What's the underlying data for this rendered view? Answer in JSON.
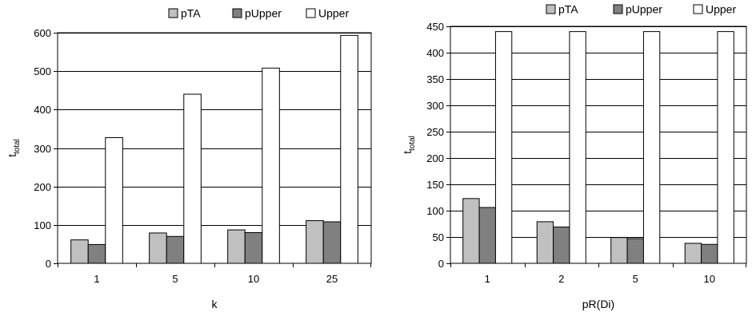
{
  "chart_data": [
    {
      "type": "bar",
      "xlabel": "k",
      "ylabel": "t",
      "ylabel_sub": "total",
      "categories": [
        "1",
        "5",
        "10",
        "25"
      ],
      "series": [
        {
          "name": "pTA",
          "values": [
            61,
            79,
            87,
            111
          ],
          "color": "#c0c0c0"
        },
        {
          "name": "pUpper",
          "values": [
            49,
            70,
            80,
            108
          ],
          "color": "#808080"
        },
        {
          "name": "Upper",
          "values": [
            327,
            440,
            508,
            593
          ],
          "color": "#ffffff"
        }
      ],
      "ylim": [
        0,
        600
      ],
      "yticks": [
        0,
        100,
        200,
        300,
        400,
        500,
        600
      ],
      "grid": true,
      "legend": "top"
    },
    {
      "type": "bar",
      "xlabel": "pR(Di)",
      "ylabel": "t",
      "ylabel_sub": "total",
      "categories": [
        "1",
        "2",
        "5",
        "10"
      ],
      "series": [
        {
          "name": "pTA",
          "values": [
            123,
            79,
            49,
            38
          ],
          "color": "#c0c0c0"
        },
        {
          "name": "pUpper",
          "values": [
            106,
            69,
            47,
            36
          ],
          "color": "#808080"
        },
        {
          "name": "Upper",
          "values": [
            440,
            440,
            440,
            440
          ],
          "color": "#ffffff"
        }
      ],
      "ylim": [
        0,
        450
      ],
      "yticks": [
        0,
        50,
        100,
        150,
        200,
        250,
        300,
        350,
        400,
        450
      ],
      "grid": true,
      "legend": "top"
    }
  ]
}
